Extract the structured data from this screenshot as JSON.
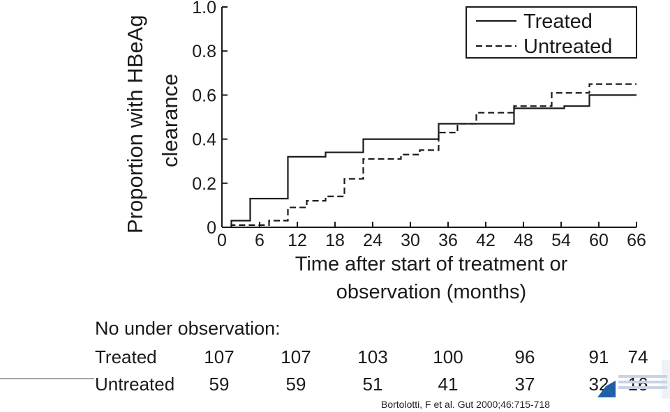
{
  "chart_data": {
    "type": "line",
    "step": true,
    "ylabel": "Proportion with HBeAg clearance",
    "ylabel_lines": [
      "Proportion with HBeAg",
      "clearance"
    ],
    "xlabel": "Time after start of treatment or observation (months)",
    "xlabel_lines": [
      "Time after start of treatment or",
      "observation (months)"
    ],
    "xlim": [
      0,
      66
    ],
    "ylim": [
      0,
      1.0
    ],
    "xticks": [
      "0",
      "6",
      "12",
      "18",
      "24",
      "30",
      "36",
      "42",
      "48",
      "54",
      "60",
      "66"
    ],
    "yticks": [
      "0",
      "0.2",
      "0.4",
      "0.6",
      "0.8",
      "1.0"
    ],
    "legend_position": "top-right",
    "series": [
      {
        "name": "Treated",
        "style": "solid",
        "x": [
          1.5,
          4.5,
          10.5,
          16.5,
          22.5,
          34.5,
          46.5,
          54.5,
          58.5,
          66
        ],
        "y": [
          0.03,
          0.13,
          0.32,
          0.34,
          0.4,
          0.47,
          0.54,
          0.55,
          0.6,
          0.6
        ]
      },
      {
        "name": "Untreated",
        "style": "dashed",
        "x": [
          1.5,
          7.5,
          10.5,
          13.5,
          16.5,
          19.5,
          22.5,
          28.5,
          31.5,
          34.5,
          37.5,
          40.5,
          46.5,
          52.5,
          58.5,
          66
        ],
        "y": [
          0.01,
          0.03,
          0.09,
          0.12,
          0.14,
          0.22,
          0.31,
          0.33,
          0.35,
          0.43,
          0.47,
          0.52,
          0.55,
          0.61,
          0.65,
          0.65
        ]
      }
    ]
  },
  "table": {
    "heading": "No under observation:",
    "rows": [
      {
        "label": "Treated",
        "values": [
          "107",
          "107",
          "103",
          "100",
          "96",
          "91",
          "74"
        ]
      },
      {
        "label": "Untreated",
        "values": [
          "59",
          "59",
          "51",
          "41",
          "37",
          "32",
          "16"
        ]
      }
    ]
  },
  "citation": "Bortolotti, F et al. Gut 2000;46:715-718",
  "colors": {
    "line": "#1a1a1a",
    "logo_blue": "#1f5fa8"
  }
}
